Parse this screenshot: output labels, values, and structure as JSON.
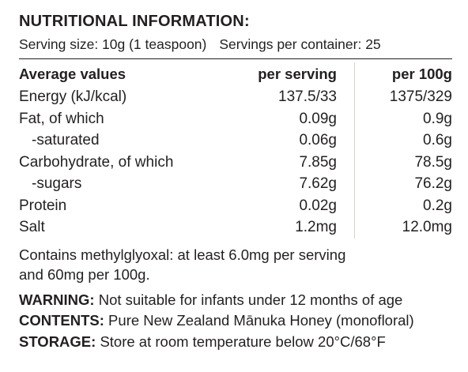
{
  "title": "NUTRITIONAL INFORMATION:",
  "serving": {
    "size": "Serving size: 10g (1 teaspoon)",
    "per_container": "Servings per container: 25"
  },
  "table": {
    "headers": {
      "label": "Average values",
      "per_serving": "per serving",
      "per_100g": "per 100g"
    },
    "rows": [
      {
        "label": "Energy (kJ/kcal)",
        "per_serving": "137.5/33",
        "per_100g": "1375/329"
      },
      {
        "label": "Fat, of which",
        "per_serving": "0.09g",
        "per_100g": "0.9g"
      },
      {
        "label": "-saturated",
        "per_serving": "0.06g",
        "per_100g": "0.6g"
      },
      {
        "label": "Carbohydrate, of which",
        "per_serving": "7.85g",
        "per_100g": "78.5g"
      },
      {
        "label": "-sugars",
        "per_serving": "7.62g",
        "per_100g": "76.2g"
      },
      {
        "label": "Protein",
        "per_serving": "0.02g",
        "per_100g": "0.2g"
      },
      {
        "label": "Salt",
        "per_serving": "1.2mg",
        "per_100g": "12.0mg"
      }
    ]
  },
  "note": {
    "line1": "Contains methylglyoxal: at least 6.0mg per serving",
    "line2": "and 60mg per 100g."
  },
  "warning": {
    "key": "WARNING:",
    "text": " Not suitable for infants under 12 months of age"
  },
  "contents": {
    "key": "CONTENTS:",
    "text": " Pure New Zealand Mānuka Honey (monofloral)"
  },
  "storage": {
    "key": "STORAGE:",
    "text": " Store at room temperature below 20°C/68°F"
  },
  "colors": {
    "text": "#231f20",
    "column_divider": "#d9d2c4",
    "background": "#ffffff"
  }
}
